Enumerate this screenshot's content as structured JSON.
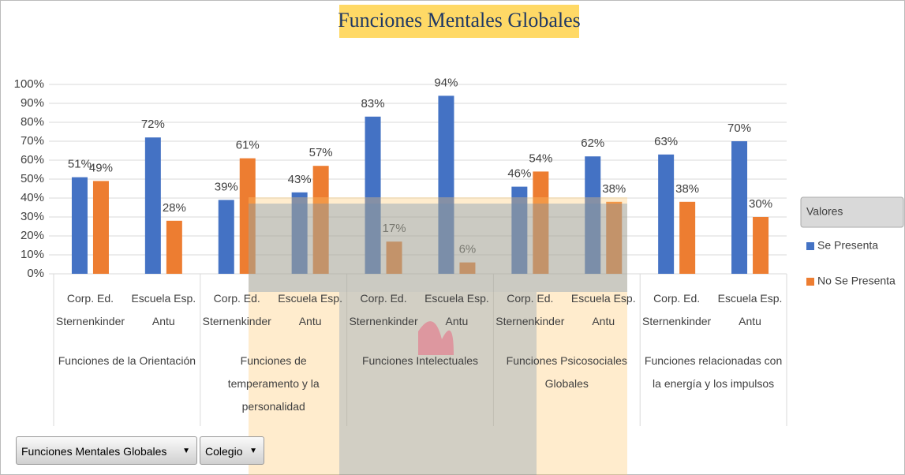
{
  "chart_data": {
    "type": "bar",
    "title": "Funciones Mentales Globales",
    "categories": [
      "Corp. Ed. Sternenkinder",
      "Escuela Esp. Antu",
      "Corp. Ed. Sternenkinder",
      "Escuela Esp. Antu",
      "Corp. Ed. Sternenkinder",
      "Escuela Esp. Antu",
      "Corp. Ed. Sternenkinder",
      "Escuela Esp. Antu",
      "Corp. Ed. Sternenkinder",
      "Escuela Esp. Antu"
    ],
    "category_groups": [
      "Funciones de la Orientación",
      "Funciones de temperamento y la personalidad",
      "Funciones Intelectuales",
      "Funciones Psicosociales Globales",
      "Funciones relacionadas con la energía y los impulsos"
    ],
    "series": [
      {
        "name": "Se Presenta",
        "color": "#4472c4",
        "values": [
          51,
          72,
          39,
          43,
          83,
          94,
          46,
          62,
          63,
          70
        ],
        "value_labels": [
          "51%",
          "72%",
          "39%",
          "43%",
          "83%",
          "94%",
          "46%",
          "62%",
          "63%",
          "70%"
        ]
      },
      {
        "name": "No Se Presenta",
        "color": "#ed7d31",
        "values": [
          49,
          28,
          61,
          57,
          17,
          6,
          54,
          38,
          38,
          30
        ],
        "value_labels": [
          "49%",
          "28%",
          "61%",
          "57%",
          "17%",
          "6%",
          "54%",
          "38%",
          "38%",
          "30%"
        ]
      }
    ],
    "ylim": [
      0,
      100
    ],
    "yticks": [
      {
        "value": 0,
        "label": "0%"
      },
      {
        "value": 10,
        "label": "10%"
      },
      {
        "value": 20,
        "label": "20%"
      },
      {
        "value": 30,
        "label": "30%"
      },
      {
        "value": 40,
        "label": "40%"
      },
      {
        "value": 50,
        "label": "50%"
      },
      {
        "value": 60,
        "label": "60%"
      },
      {
        "value": 70,
        "label": "70%"
      },
      {
        "value": 80,
        "label": "80%"
      },
      {
        "value": 90,
        "label": "90%"
      },
      {
        "value": 100,
        "label": "100%"
      }
    ],
    "grid": true,
    "legend": "right",
    "legend_title": "Valores"
  },
  "filters": [
    "Funciones Mentales Globales",
    "Colegio"
  ]
}
